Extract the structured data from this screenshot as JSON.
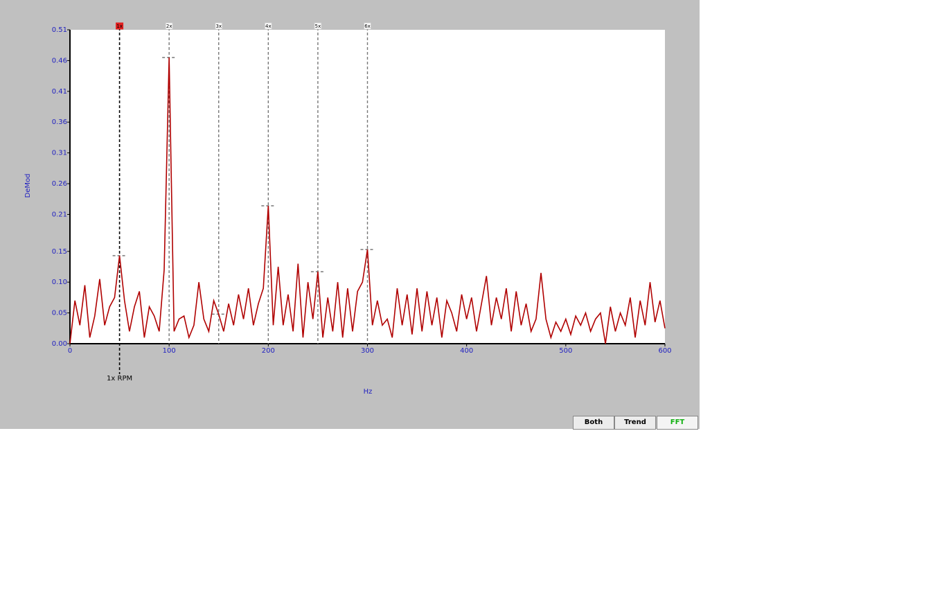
{
  "chart_data": {
    "type": "line",
    "y_label": "DeMod",
    "x_label": "Hz",
    "xlim": [
      0,
      600
    ],
    "xticks": [
      0,
      100,
      200,
      300,
      400,
      500,
      600
    ],
    "ylim": [
      0,
      0.51
    ],
    "yticks": [
      {
        "value": 0,
        "label": "0.00"
      },
      0.05,
      {
        "value": 0.1,
        "label": "0.10"
      },
      0.15,
      0.21,
      0.26,
      0.31,
      0.36,
      0.41,
      0.46,
      0.51
    ],
    "series": [
      {
        "color": "#b00000",
        "x": [
          0,
          5,
          10,
          15,
          20,
          25,
          30,
          35,
          40,
          45,
          50,
          55,
          60,
          65,
          70,
          75,
          80,
          85,
          90,
          95,
          100,
          105,
          110,
          115,
          120,
          125,
          130,
          135,
          140,
          145,
          150,
          155,
          160,
          165,
          170,
          175,
          180,
          185,
          190,
          195,
          200,
          205,
          210,
          215,
          220,
          225,
          230,
          235,
          240,
          245,
          250,
          255,
          260,
          265,
          270,
          275,
          280,
          285,
          290,
          295,
          300,
          305,
          310,
          315,
          320,
          325,
          330,
          335,
          340,
          345,
          350,
          355,
          360,
          365,
          370,
          375,
          380,
          385,
          390,
          395,
          400,
          405,
          410,
          415,
          420,
          425,
          430,
          435,
          440,
          445,
          450,
          455,
          460,
          465,
          470,
          475,
          480,
          485,
          490,
          495,
          500,
          505,
          510,
          515,
          520,
          525,
          530,
          535,
          540,
          545,
          550,
          555,
          560,
          565,
          570,
          575,
          580,
          585,
          590,
          595,
          600
        ],
        "values": [
          0.0,
          0.07,
          0.03,
          0.095,
          0.01,
          0.045,
          0.105,
          0.03,
          0.06,
          0.075,
          0.143,
          0.07,
          0.02,
          0.06,
          0.085,
          0.01,
          0.06,
          0.045,
          0.02,
          0.12,
          0.465,
          0.02,
          0.04,
          0.045,
          0.01,
          0.03,
          0.1,
          0.04,
          0.02,
          0.07,
          0.048,
          0.02,
          0.065,
          0.03,
          0.08,
          0.04,
          0.09,
          0.03,
          0.065,
          0.09,
          0.224,
          0.03,
          0.125,
          0.03,
          0.08,
          0.02,
          0.13,
          0.01,
          0.1,
          0.04,
          0.117,
          0.01,
          0.075,
          0.02,
          0.1,
          0.01,
          0.09,
          0.02,
          0.085,
          0.1,
          0.153,
          0.03,
          0.07,
          0.03,
          0.04,
          0.01,
          0.09,
          0.03,
          0.08,
          0.015,
          0.09,
          0.02,
          0.085,
          0.03,
          0.075,
          0.01,
          0.07,
          0.05,
          0.02,
          0.08,
          0.04,
          0.075,
          0.02,
          0.065,
          0.11,
          0.03,
          0.075,
          0.04,
          0.09,
          0.02,
          0.085,
          0.03,
          0.065,
          0.02,
          0.04,
          0.115,
          0.04,
          0.01,
          0.035,
          0.02,
          0.04,
          0.015,
          0.045,
          0.03,
          0.05,
          0.02,
          0.04,
          0.05,
          0.0,
          0.06,
          0.02,
          0.05,
          0.03,
          0.075,
          0.01,
          0.07,
          0.03,
          0.1,
          0.035,
          0.07,
          0.025
        ]
      }
    ],
    "harmonics": [
      {
        "label": "1x",
        "x": 50,
        "peak": 0.143
      },
      {
        "label": "2x",
        "x": 100,
        "peak": 0.465
      },
      {
        "label": "3x",
        "x": 150,
        "peak": 0.048
      },
      {
        "label": "4x",
        "x": 200,
        "peak": 0.224
      },
      {
        "label": "5x",
        "x": 250,
        "peak": 0.117
      },
      {
        "label": "6x",
        "x": 300,
        "peak": 0.153
      }
    ],
    "rpm_label": "1x RPM"
  },
  "buttons": [
    "Both",
    "Trend",
    "FFT"
  ]
}
